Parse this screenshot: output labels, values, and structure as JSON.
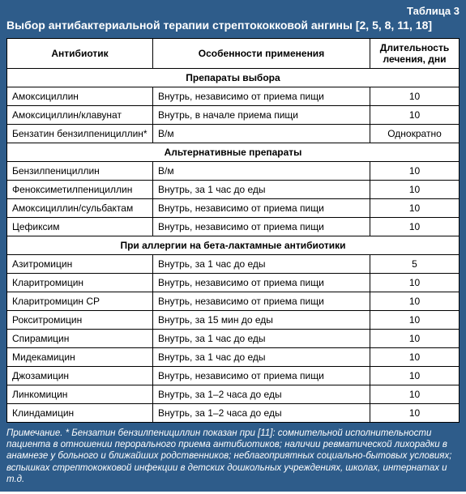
{
  "caption": "Таблица 3",
  "title": "Выбор антибактериальной терапии стрептококковой ангины [2, 5, 8, 11, 18]",
  "headers": {
    "c1": "Антибиотик",
    "c2": "Особенности применения",
    "c3": "Длительность лечения, дни"
  },
  "sections": [
    {
      "heading": "Препараты выбора",
      "rows": [
        {
          "c1": "Амоксициллин",
          "c2": "Внутрь, независимо от приема пищи",
          "c3": "10"
        },
        {
          "c1": "Амоксициллин/клавунат",
          "c2": "Внутрь, в начале приема пищи",
          "c3": "10"
        },
        {
          "c1": "Бензатин бензилпенициллин*",
          "c2": "В/м",
          "c3": "Однократно"
        }
      ]
    },
    {
      "heading": "Альтернативные препараты",
      "rows": [
        {
          "c1": "Бензилпенициллин",
          "c2": "В/м",
          "c3": "10"
        },
        {
          "c1": "Феноксиметилпенициллин",
          "c2": "Внутрь, за 1 час до еды",
          "c3": "10"
        },
        {
          "c1": "Амоксициллин/сульбактам",
          "c2": "Внутрь, независимо от приема пищи",
          "c3": "10"
        },
        {
          "c1": "Цефиксим",
          "c2": "Внутрь, независимо от приема пищи",
          "c3": "10"
        }
      ]
    },
    {
      "heading": "При аллергии на бета-лактамные антибиотики",
      "rows": [
        {
          "c1": "Азитромицин",
          "c2": "Внутрь, за 1 час до еды",
          "c3": "5"
        },
        {
          "c1": "Кларитромицин",
          "c2": "Внутрь, независимо от приема пищи",
          "c3": "10"
        },
        {
          "c1": "Кларитромицин СР",
          "c2": "Внутрь, независимо от приема пищи",
          "c3": "10"
        },
        {
          "c1": "Рокситромицин",
          "c2": "Внутрь, за 15 мин до еды",
          "c3": "10"
        },
        {
          "c1": "Спирамицин",
          "c2": "Внутрь, за 1 час до еды",
          "c3": "10"
        },
        {
          "c1": "Мидекамицин",
          "c2": "Внутрь, за 1 час до еды",
          "c3": "10"
        },
        {
          "c1": "Джозамицин",
          "c2": "Внутрь, независимо от приема пищи",
          "c3": "10"
        },
        {
          "c1": "Линкомицин",
          "c2": "Внутрь, за 1–2 часа до еды",
          "c3": "10"
        },
        {
          "c1": "Клиндамицин",
          "c2": "Внутрь, за 1–2 часа до еды",
          "c3": "10"
        }
      ]
    }
  ],
  "note": "Примечание. * Бензатин бензилпенициллин показан при [11]: сомнительной исполнительности пациента в отношении перорального приема антибиотиков; наличии ревматической лихорадки в анамнезе у больного и ближайших родственников; неблагоприятных социально-бытовых условиях; вспышках стрептококковой инфекции в детских дошкольных учреждениях, школах, интернатах и т.д."
}
